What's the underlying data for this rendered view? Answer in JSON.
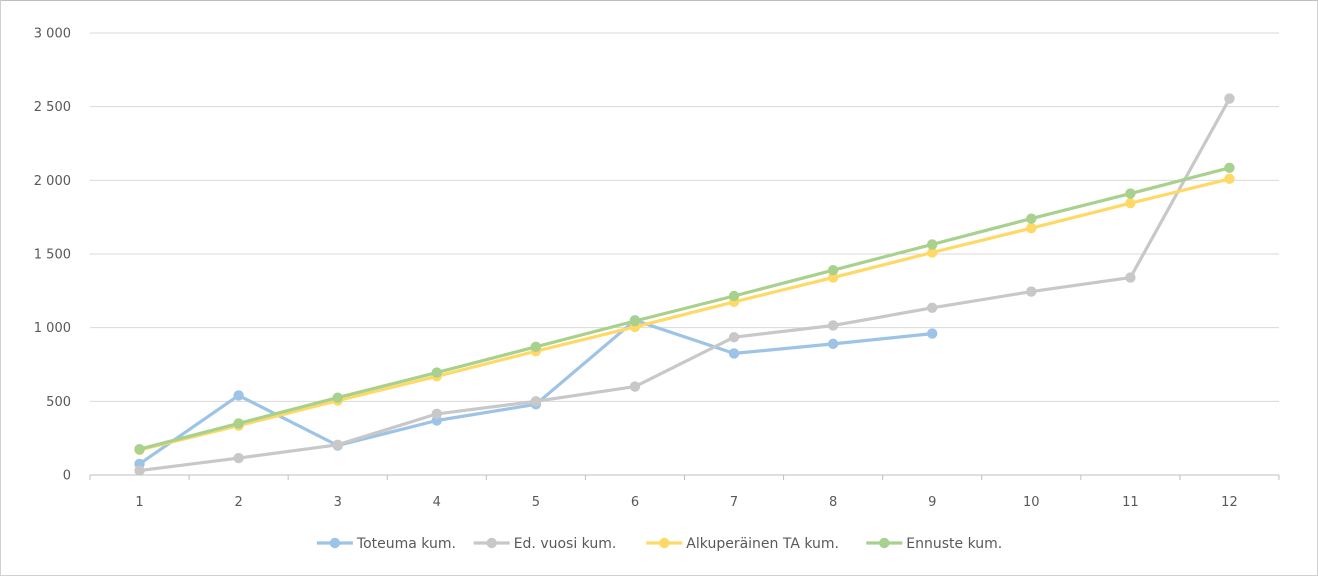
{
  "chart_data": {
    "type": "line",
    "title": "",
    "xlabel": "",
    "ylabel": "",
    "categories": [
      "1",
      "2",
      "3",
      "4",
      "5",
      "6",
      "7",
      "8",
      "9",
      "10",
      "11",
      "12"
    ],
    "ylim": [
      0,
      3000
    ],
    "yticks": [
      0,
      500,
      1000,
      1500,
      2000,
      2500,
      3000
    ],
    "ytick_labels": [
      "0",
      "500",
      "1 000",
      "1 500",
      "2 000",
      "2 500",
      "3 000"
    ],
    "grid": true,
    "legend_position": "bottom",
    "series": [
      {
        "name": "Toteuma kum.",
        "color": "#9dc3e6",
        "values": [
          75,
          540,
          200,
          370,
          480,
          1050,
          825,
          890,
          960,
          null,
          null,
          null
        ]
      },
      {
        "name": "Ed. vuosi kum.",
        "color": "#c8c8c8",
        "values": [
          30,
          115,
          205,
          415,
          500,
          600,
          935,
          1015,
          1135,
          1245,
          1340,
          2555
        ]
      },
      {
        "name": "Alkuperäinen TA kum.",
        "color": "#ffd966",
        "values": [
          170,
          335,
          505,
          670,
          840,
          1005,
          1175,
          1340,
          1510,
          1675,
          1845,
          2010
        ]
      },
      {
        "name": "Ennuste kum.",
        "color": "#a9d18e",
        "values": [
          175,
          350,
          525,
          695,
          870,
          1045,
          1215,
          1390,
          1565,
          1740,
          1910,
          2085
        ]
      }
    ]
  }
}
